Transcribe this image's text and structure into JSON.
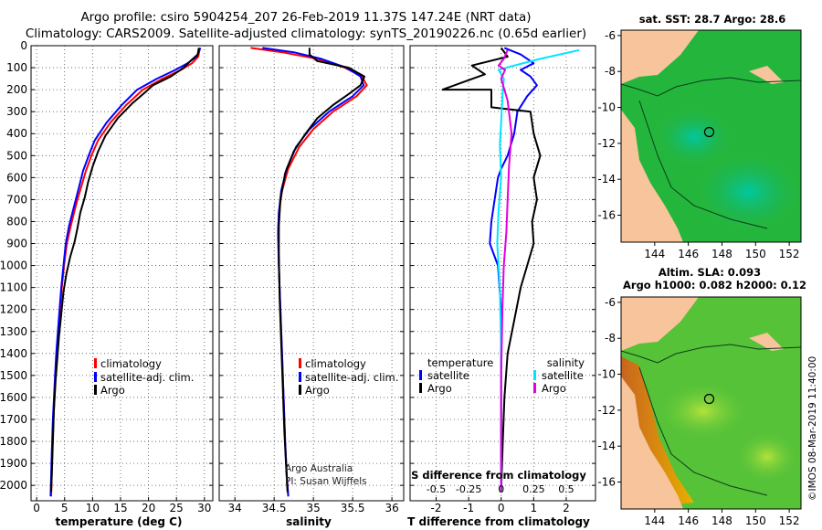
{
  "header": {
    "title_line1": "Argo profile: csiro 5904254_207 26-Feb-2019 11.37S 147.24E (NRT data)",
    "title_line2": "Climatology: CARS2009. Satellite-adjusted climatology: synTS_20190226.nc (0.65d earlier)"
  },
  "colors": {
    "climatology": "#ff0000",
    "satellite": "#0000ff",
    "argo": "#000000",
    "s_satellite": "#00e5ff",
    "s_argo": "#e000e0",
    "land": "#f7c49c"
  },
  "maps": {
    "sst": {
      "title": "sat. SST: 28.7 Argo: 28.6",
      "x_ticks": [
        "144",
        "146",
        "148",
        "150",
        "152"
      ],
      "y_ticks": [
        "-6",
        "-8",
        "-10",
        "-12",
        "-14",
        "-16"
      ],
      "lon_range": [
        142,
        152.7
      ],
      "lat_range": [
        -17.5,
        -5.7
      ],
      "float_lon": 147.24,
      "float_lat": -11.37
    },
    "sla": {
      "title_line1": "Altim. SLA: 0.093",
      "title_line2": "Argo h1000: 0.082 h2000: 0.12",
      "x_ticks": [
        "144",
        "146",
        "148",
        "150",
        "152"
      ],
      "y_ticks": [
        "-6",
        "-8",
        "-10",
        "-12",
        "-14",
        "-16"
      ],
      "lon_range": [
        142,
        152.7
      ],
      "lat_range": [
        -17.5,
        -5.7
      ],
      "float_lon": 147.24,
      "float_lat": -11.37
    }
  },
  "credit": "©IMOS 08-Mar-2019 11:40:00",
  "chart_data": [
    {
      "type": "line",
      "id": "temperature",
      "xlabel": "temperature (deg C)",
      "ylabel": "",
      "xlim": [
        -1,
        31.5
      ],
      "ylim": [
        2070,
        0
      ],
      "x_ticks": [
        "0",
        "5",
        "10",
        "15",
        "20",
        "25",
        "30"
      ],
      "y_ticks": [
        "0",
        "100",
        "200",
        "300",
        "400",
        "500",
        "600",
        "700",
        "800",
        "900",
        "1000",
        "1100",
        "1200",
        "1300",
        "1400",
        "1500",
        "1600",
        "1700",
        "1800",
        "1900",
        "2000"
      ],
      "legend": [
        "climatology",
        "satellite-adj. clim.",
        "Argo"
      ],
      "legend_position": "center",
      "series": [
        {
          "name": "climatology",
          "color": "#ff0000",
          "x": [
            29.2,
            28.9,
            27.8,
            25.8,
            22.5,
            19.0,
            16.0,
            13.2,
            11.0,
            9.8,
            8.8,
            8.0,
            7.3,
            6.7,
            6.1,
            5.4,
            4.9,
            4.5,
            4.2,
            3.9,
            3.6,
            3.4,
            3.2,
            3.0,
            2.8,
            2.6
          ],
          "y": [
            10,
            50,
            80,
            110,
            150,
            200,
            270,
            350,
            430,
            500,
            570,
            640,
            700,
            760,
            820,
            900,
            1000,
            1100,
            1200,
            1300,
            1400,
            1500,
            1600,
            1700,
            1850,
            2050
          ]
        },
        {
          "name": "satellite-adj. clim.",
          "color": "#0000ff",
          "x": [
            29.3,
            28.6,
            27.0,
            24.8,
            21.5,
            18.0,
            15.2,
            12.5,
            10.4,
            9.3,
            8.3,
            7.6,
            7.0,
            6.4,
            5.8,
            5.2,
            4.8,
            4.4,
            4.1,
            3.8,
            3.5,
            3.3,
            3.1,
            2.9,
            2.7,
            2.5
          ],
          "y": [
            10,
            50,
            80,
            110,
            150,
            200,
            270,
            350,
            430,
            500,
            570,
            640,
            700,
            760,
            820,
            900,
            1000,
            1100,
            1200,
            1300,
            1400,
            1500,
            1600,
            1700,
            1850,
            2050
          ]
        },
        {
          "name": "Argo",
          "color": "#000000",
          "x": [
            29.0,
            28.8,
            27.5,
            26.3,
            24.0,
            20.8,
            19.5,
            17.2,
            14.5,
            12.3,
            11.0,
            10.0,
            9.2,
            8.6,
            7.8,
            7.3,
            6.8,
            6.0,
            5.3,
            4.8,
            4.4,
            4.0,
            3.7,
            3.4,
            3.1,
            2.9,
            2.7,
            2.6
          ],
          "y": [
            10,
            40,
            70,
            100,
            140,
            180,
            210,
            260,
            330,
            410,
            480,
            550,
            620,
            690,
            760,
            830,
            890,
            960,
            1040,
            1120,
            1220,
            1320,
            1420,
            1520,
            1650,
            1800,
            1950,
            2030
          ]
        }
      ]
    },
    {
      "type": "line",
      "id": "salinity",
      "xlabel": "salinity",
      "ylabel": "",
      "xlim": [
        33.8,
        36.15
      ],
      "ylim": [
        2070,
        0
      ],
      "x_ticks": [
        "34",
        "34.5",
        "35",
        "35.5",
        "36"
      ],
      "legend": [
        "climatology",
        "satellite-adj. clim.",
        "Argo"
      ],
      "legend_position": "center",
      "annotations": [
        "Argo Australia",
        "PI: Susan Wijffels"
      ],
      "series": [
        {
          "name": "climatology",
          "color": "#ff0000",
          "x": [
            34.2,
            34.6,
            35.05,
            35.4,
            35.62,
            35.68,
            35.55,
            35.25,
            35.0,
            34.82,
            34.68,
            34.6,
            34.56,
            34.55,
            34.56,
            34.58,
            34.6,
            34.62,
            34.64,
            34.66,
            34.68
          ],
          "y": [
            10,
            30,
            60,
            100,
            140,
            180,
            230,
            300,
            380,
            460,
            560,
            660,
            760,
            850,
            1000,
            1200,
            1400,
            1600,
            1800,
            1950,
            2050
          ]
        },
        {
          "name": "satellite-adj. clim.",
          "color": "#0000ff",
          "x": [
            34.35,
            34.75,
            35.1,
            35.42,
            35.6,
            35.64,
            35.5,
            35.2,
            34.95,
            34.78,
            34.66,
            34.59,
            34.56,
            34.55,
            34.56,
            34.58,
            34.6,
            34.62,
            34.64,
            34.66,
            34.68
          ],
          "y": [
            10,
            30,
            60,
            100,
            140,
            180,
            230,
            300,
            380,
            460,
            560,
            660,
            760,
            850,
            1000,
            1200,
            1400,
            1600,
            1800,
            1950,
            2050
          ]
        },
        {
          "name": "Argo",
          "color": "#000000",
          "x": [
            34.95,
            34.95,
            35.05,
            35.45,
            35.65,
            35.6,
            35.45,
            35.25,
            35.05,
            34.9,
            34.75,
            34.64,
            34.58,
            34.56,
            34.56,
            34.57,
            34.59,
            34.61,
            34.63,
            34.65,
            34.67
          ],
          "y": [
            10,
            40,
            70,
            100,
            140,
            180,
            220,
            270,
            330,
            400,
            480,
            580,
            700,
            820,
            950,
            1150,
            1350,
            1550,
            1750,
            1900,
            2030
          ]
        }
      ]
    },
    {
      "type": "line",
      "id": "differences",
      "xlabel": "T difference from climatology",
      "xlabel_top": "S difference from climatology",
      "ylabel": "",
      "xlim": [
        -2.8,
        2.9
      ],
      "ylim": [
        2070,
        0
      ],
      "x_ticks": [
        "-2",
        "-1",
        "0",
        "1",
        "2"
      ],
      "s_ticks": [
        "-0.5",
        "-0.25",
        "0",
        "0.25",
        "0.5"
      ],
      "s_scale": 0.25,
      "legend": [
        "temperature",
        "satellite",
        "Argo",
        "salinity",
        "satellite",
        "Argo"
      ],
      "legend_position": "bottom",
      "series": [
        {
          "name": "T satellite",
          "color": "#0000ff",
          "x": [
            0.1,
            0.6,
            1.0,
            0.6,
            0.9,
            1.1,
            0.8,
            0.5,
            0.4,
            0.2,
            0.0,
            -0.1,
            -0.2,
            -0.3,
            -0.35,
            -0.1,
            0.0,
            0.0,
            0.0,
            0.0,
            0.0
          ],
          "y": [
            10,
            40,
            80,
            110,
            140,
            180,
            230,
            300,
            400,
            500,
            560,
            600,
            700,
            800,
            900,
            1000,
            1200,
            1400,
            1600,
            1800,
            2030
          ]
        },
        {
          "name": "T Argo",
          "color": "#000000",
          "x": [
            0.0,
            0.2,
            -0.9,
            -0.5,
            -1.8,
            -0.3,
            -0.3,
            0.9,
            1.0,
            1.2,
            1.0,
            1.1,
            0.95,
            1.0,
            0.8,
            0.6,
            0.4,
            0.2,
            0.1,
            0.05,
            0.0
          ],
          "y": [
            10,
            50,
            90,
            130,
            200,
            200,
            280,
            300,
            400,
            500,
            600,
            700,
            800,
            900,
            1000,
            1100,
            1250,
            1400,
            1600,
            1800,
            2030
          ]
        },
        {
          "name": "S satellite",
          "color": "#00e5ff",
          "x": [
            0.6,
            0.3,
            0.1,
            -0.02,
            0.02,
            0.01,
            0.0,
            -0.01,
            0.0,
            -0.02,
            -0.03,
            -0.01,
            0.0,
            0.0
          ],
          "y": [
            20,
            60,
            90,
            110,
            150,
            230,
            350,
            450,
            600,
            750,
            900,
            1100,
            1400,
            2030
          ]
        },
        {
          "name": "S Argo",
          "color": "#e000e0",
          "x": [
            0.05,
            0.02,
            -0.02,
            0.03,
            0.0,
            0.05,
            0.08,
            0.06,
            0.05,
            0.04,
            0.02,
            0.01,
            0.0,
            0.0
          ],
          "y": [
            20,
            60,
            90,
            110,
            150,
            250,
            400,
            550,
            700,
            850,
            1000,
            1200,
            1500,
            2030
          ]
        }
      ]
    }
  ]
}
